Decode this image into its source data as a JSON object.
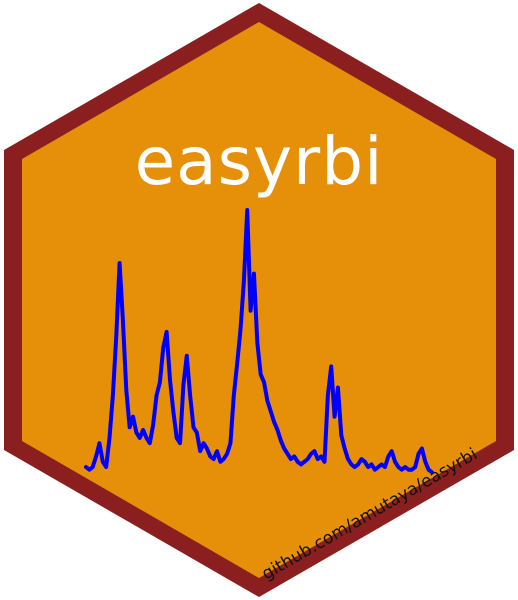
{
  "logo": {
    "title": "easyrbi",
    "url": "github.com/amutaya/easyrbi",
    "colors": {
      "fill": "#E6900A",
      "border": "#8B1F1F",
      "line": "#0000FF",
      "title": "#FFFFFF",
      "url": "#111111"
    },
    "sparkline": [
      0.03,
      0.02,
      0.03,
      0.07,
      0.12,
      0.05,
      0.03,
      0.14,
      0.3,
      0.52,
      0.8,
      0.58,
      0.32,
      0.18,
      0.22,
      0.16,
      0.14,
      0.17,
      0.14,
      0.12,
      0.19,
      0.3,
      0.35,
      0.48,
      0.54,
      0.36,
      0.24,
      0.14,
      0.12,
      0.34,
      0.45,
      0.3,
      0.18,
      0.16,
      0.09,
      0.12,
      0.1,
      0.07,
      0.06,
      0.09,
      0.05,
      0.06,
      0.08,
      0.12,
      0.3,
      0.42,
      0.55,
      0.73,
      1.0,
      0.62,
      0.76,
      0.5,
      0.38,
      0.35,
      0.28,
      0.24,
      0.2,
      0.17,
      0.13,
      0.1,
      0.08,
      0.06,
      0.07,
      0.05,
      0.04,
      0.05,
      0.06,
      0.08,
      0.09,
      0.06,
      0.07,
      0.05,
      0.3,
      0.41,
      0.22,
      0.33,
      0.15,
      0.1,
      0.06,
      0.04,
      0.03,
      0.04,
      0.06,
      0.05,
      0.03,
      0.04,
      0.02,
      0.03,
      0.04,
      0.03,
      0.07,
      0.09,
      0.05,
      0.03,
      0.02,
      0.03,
      0.02,
      0.02,
      0.03,
      0.08,
      0.1,
      0.05,
      0.02,
      0.01
    ]
  }
}
